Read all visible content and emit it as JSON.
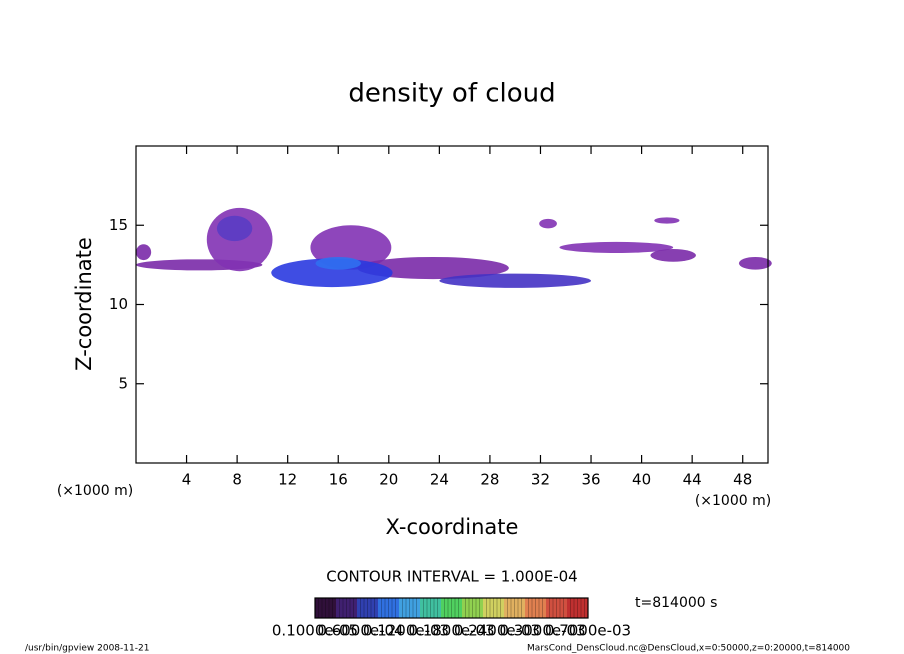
{
  "chart_data": {
    "type": "contour",
    "title": "density of cloud",
    "x_label": "X-coordinate",
    "y_label": "Z-coordinate",
    "x_unit": "(×1000 m)",
    "y_unit": "(×1000 m)",
    "xlim": [
      0,
      50
    ],
    "ylim": [
      0,
      20
    ],
    "xticks": [
      4,
      8,
      12,
      16,
      20,
      24,
      28,
      32,
      36,
      40,
      44,
      48
    ],
    "yticks": [
      5,
      10,
      15
    ],
    "contour_interval": "CONTOUR INTERVAL = 1.000E-04",
    "time": "t=814000 s",
    "footer_left": "/usr/bin/gpview   2008-11-21",
    "footer_right": "MarsCond_DensCloud.nc@DensCloud,x=0:50000,z=0:20000,t=814000",
    "cells": [
      {
        "x": 5,
        "z": 12.5,
        "rx": 5,
        "rz": 0.35,
        "color": "#7a2aa8"
      },
      {
        "x": 0.6,
        "z": 13.3,
        "rx": 0.6,
        "rz": 0.5,
        "color": "#7a2aa8"
      },
      {
        "x": 8.2,
        "z": 14.1,
        "rx": 2.6,
        "rz": 2,
        "color": "#8232b4"
      },
      {
        "x": 7.8,
        "z": 14.8,
        "rx": 1.4,
        "rz": 0.8,
        "color": "#5a3cc4"
      },
      {
        "x": 17,
        "z": 13.6,
        "rx": 3.2,
        "rz": 1.4,
        "color": "#8232b4"
      },
      {
        "x": 23.5,
        "z": 12.3,
        "rx": 6,
        "rz": 0.7,
        "color": "#7a2aa8"
      },
      {
        "x": 15.5,
        "z": 12,
        "rx": 4.8,
        "rz": 0.9,
        "color": "#2a3ae0"
      },
      {
        "x": 16,
        "z": 12.6,
        "rx": 1.8,
        "rz": 0.4,
        "color": "#3070f0"
      },
      {
        "x": 30,
        "z": 11.5,
        "rx": 6,
        "rz": 0.45,
        "color": "#4432c4"
      },
      {
        "x": 38,
        "z": 13.6,
        "rx": 4.5,
        "rz": 0.35,
        "color": "#8232b4"
      },
      {
        "x": 42.5,
        "z": 13.1,
        "rx": 1.8,
        "rz": 0.4,
        "color": "#7a2aa8"
      },
      {
        "x": 42,
        "z": 15.3,
        "rx": 1,
        "rz": 0.2,
        "color": "#8232b4"
      },
      {
        "x": 32.6,
        "z": 15.1,
        "rx": 0.7,
        "rz": 0.3,
        "color": "#8232b4"
      },
      {
        "x": 49,
        "z": 12.6,
        "rx": 1.3,
        "rz": 0.4,
        "color": "#7a2aa8"
      }
    ],
    "colorbar": {
      "colors": [
        "#30103a",
        "#402070",
        "#3040b0",
        "#3070e0",
        "#40a0e0",
        "#40c0a0",
        "#50d060",
        "#90d050",
        "#d0d060",
        "#e0b060",
        "#e08050",
        "#d05040",
        "#c03030"
      ],
      "labels": [
        "0.1000e-05",
        "0.6000e-04",
        "0.1200e-03",
        "0.1800e-03",
        "0.2400e-03",
        "0.3000e-03",
        "0.7000e-03"
      ]
    }
  }
}
